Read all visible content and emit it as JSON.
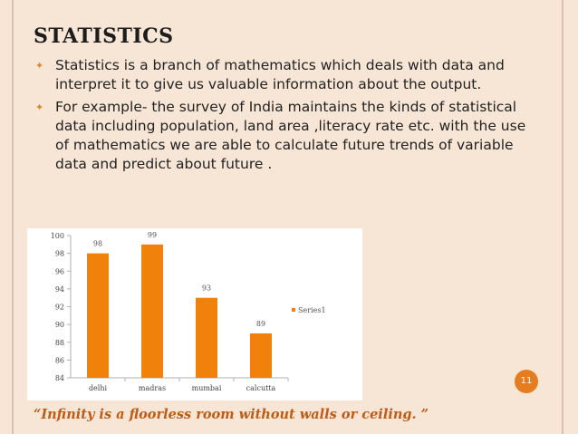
{
  "slide": {
    "title": "STATISTICS",
    "bullets": [
      "Statistics is a branch of mathematics which deals with data and interpret it to give us valuable information about the output.",
      "For example- the survey of India maintains the kinds of statistical data including population, land area ,literacy rate etc. with the use of mathematics we are able to calculate future trends of variable data and predict about future ."
    ],
    "bullet_icon": "diamond-bullet-icon",
    "page_number": "11",
    "quote": "“Infinity is a floorless room without walls or ceiling. ”",
    "colors": {
      "bar": "#f0820c",
      "accent": "#e57c1f",
      "quote": "#c05a14"
    }
  },
  "chart_data": {
    "type": "bar",
    "categories": [
      "delhi",
      "madras",
      "mumbai",
      "calcutta"
    ],
    "series": [
      {
        "name": "Series1",
        "values": [
          98,
          99,
          93,
          89
        ]
      }
    ],
    "ylim": [
      84,
      100
    ],
    "yticks": [
      "84",
      "86",
      "88",
      "90",
      "92",
      "94",
      "96",
      "98",
      "100"
    ],
    "data_labels": [
      "98",
      "99",
      "93",
      "89"
    ],
    "legend": "right",
    "grid": false
  }
}
